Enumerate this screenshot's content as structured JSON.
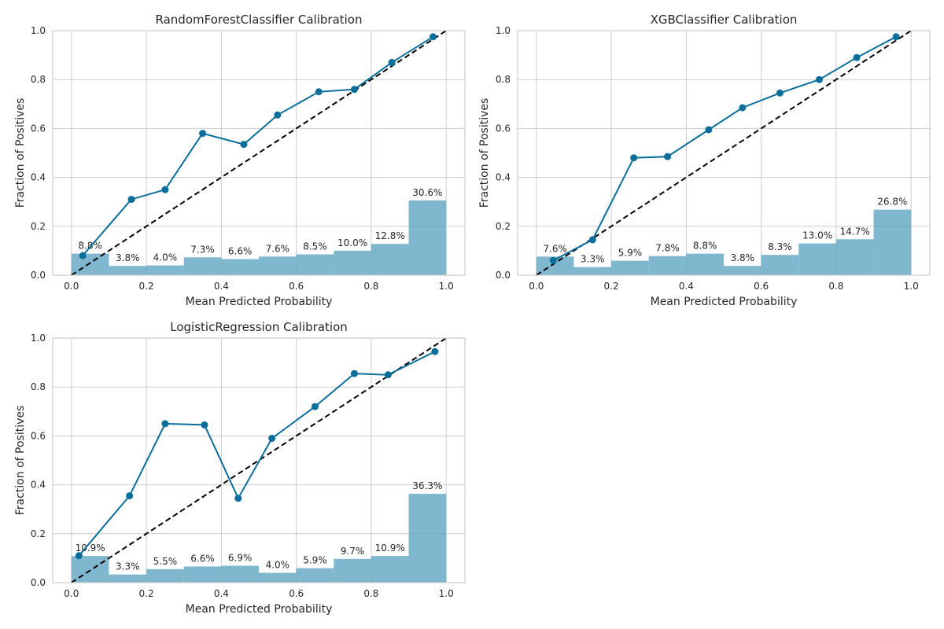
{
  "colors": {
    "line": "#0a6e9b",
    "bars": "#5ba3c2",
    "ref": "#000000",
    "grid": "#cccccc"
  },
  "chart_data": [
    {
      "type": "line",
      "title": "RandomForestClassifier Calibration",
      "xlabel": "Mean Predicted Probability",
      "ylabel": "Fraction of Positives",
      "xlim": [
        -0.05,
        1.05
      ],
      "ylim": [
        0,
        1
      ],
      "xticks": [
        "0.0",
        "0.2",
        "0.4",
        "0.6",
        "0.8",
        "1.0"
      ],
      "yticks": [
        "0.0",
        "0.2",
        "0.4",
        "0.6",
        "0.8",
        "1.0"
      ],
      "grid": true,
      "reference_line": [
        [
          0,
          0
        ],
        [
          1,
          1
        ]
      ],
      "calibration_curve": {
        "x": [
          0.03,
          0.16,
          0.25,
          0.35,
          0.46,
          0.55,
          0.66,
          0.755,
          0.855,
          0.965
        ],
        "y": [
          0.08,
          0.31,
          0.35,
          0.58,
          0.535,
          0.655,
          0.75,
          0.76,
          0.87,
          0.975
        ]
      },
      "histogram": {
        "bin_edges": [
          0,
          0.1,
          0.2,
          0.3,
          0.4,
          0.5,
          0.6,
          0.7,
          0.8,
          0.9,
          1.0
        ],
        "fractions": [
          0.088,
          0.038,
          0.04,
          0.073,
          0.066,
          0.076,
          0.085,
          0.1,
          0.128,
          0.306
        ],
        "labels": [
          "8.8%",
          "3.8%",
          "4.0%",
          "7.3%",
          "6.6%",
          "7.6%",
          "8.5%",
          "10.0%",
          "12.8%",
          "30.6%"
        ]
      }
    },
    {
      "type": "line",
      "title": "XGBClassifier Calibration",
      "xlabel": "Mean Predicted Probability",
      "ylabel": "Fraction of Positives",
      "xlim": [
        -0.05,
        1.05
      ],
      "ylim": [
        0,
        1
      ],
      "xticks": [
        "0.0",
        "0.2",
        "0.4",
        "0.6",
        "0.8",
        "1.0"
      ],
      "yticks": [
        "0.0",
        "0.2",
        "0.4",
        "0.6",
        "0.8",
        "1.0"
      ],
      "grid": true,
      "reference_line": [
        [
          0,
          0
        ],
        [
          1,
          1
        ]
      ],
      "calibration_curve": {
        "x": [
          0.045,
          0.15,
          0.26,
          0.35,
          0.46,
          0.55,
          0.65,
          0.755,
          0.855,
          0.96
        ],
        "y": [
          0.06,
          0.145,
          0.48,
          0.485,
          0.595,
          0.685,
          0.745,
          0.8,
          0.89,
          0.975
        ]
      },
      "histogram": {
        "bin_edges": [
          0,
          0.1,
          0.2,
          0.3,
          0.4,
          0.5,
          0.6,
          0.7,
          0.8,
          0.9,
          1.0
        ],
        "fractions": [
          0.076,
          0.033,
          0.059,
          0.078,
          0.088,
          0.038,
          0.083,
          0.13,
          0.147,
          0.268
        ],
        "labels": [
          "7.6%",
          "3.3%",
          "5.9%",
          "7.8%",
          "8.8%",
          "3.8%",
          "8.3%",
          "13.0%",
          "14.7%",
          "26.8%"
        ]
      }
    },
    {
      "type": "line",
      "title": "LogisticRegression Calibration",
      "xlabel": "Mean Predicted Probability",
      "ylabel": "Fraction of Positives",
      "xlim": [
        -0.05,
        1.05
      ],
      "ylim": [
        0,
        1
      ],
      "xticks": [
        "0.0",
        "0.2",
        "0.4",
        "0.6",
        "0.8",
        "1.0"
      ],
      "yticks": [
        "0.0",
        "0.2",
        "0.4",
        "0.6",
        "0.8",
        "1.0"
      ],
      "grid": true,
      "reference_line": [
        [
          0,
          0
        ],
        [
          1,
          1
        ]
      ],
      "calibration_curve": {
        "x": [
          0.02,
          0.155,
          0.25,
          0.355,
          0.445,
          0.535,
          0.65,
          0.755,
          0.845,
          0.97
        ],
        "y": [
          0.11,
          0.355,
          0.65,
          0.645,
          0.345,
          0.59,
          0.72,
          0.855,
          0.85,
          0.945
        ]
      },
      "histogram": {
        "bin_edges": [
          0,
          0.1,
          0.2,
          0.3,
          0.4,
          0.5,
          0.6,
          0.7,
          0.8,
          0.9,
          1.0
        ],
        "fractions": [
          0.109,
          0.033,
          0.055,
          0.066,
          0.069,
          0.04,
          0.059,
          0.097,
          0.109,
          0.363
        ],
        "labels": [
          "10.9%",
          "3.3%",
          "5.5%",
          "6.6%",
          "6.9%",
          "4.0%",
          "5.9%",
          "9.7%",
          "10.9%",
          "36.3%"
        ]
      }
    }
  ]
}
